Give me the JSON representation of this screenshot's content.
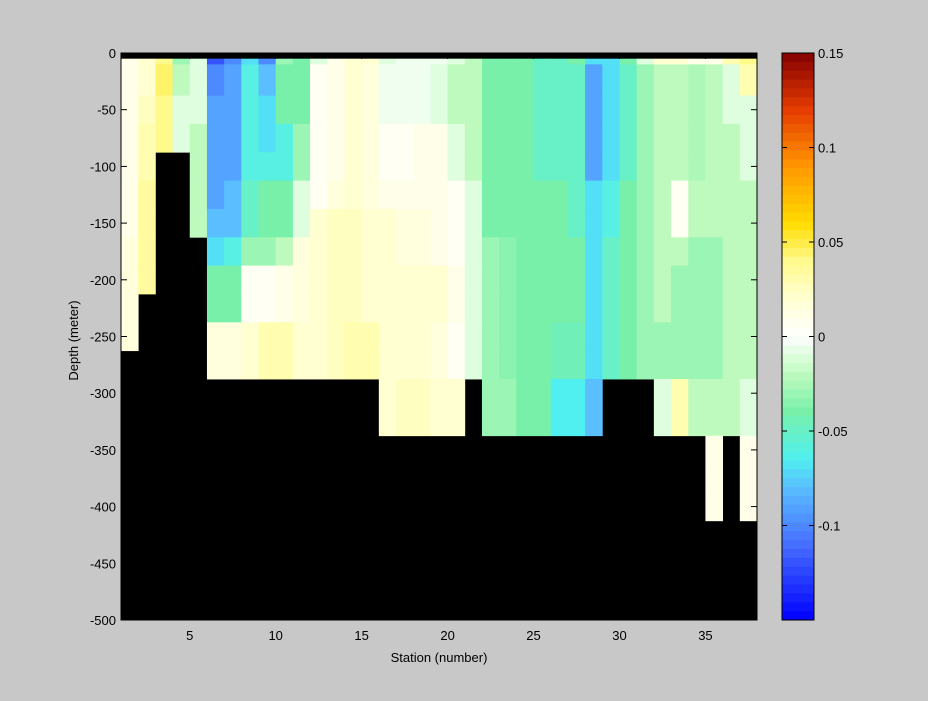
{
  "figure": {
    "background": "#c8c8c8"
  },
  "chart_data": {
    "type": "heatmap",
    "xlabel": "Station (number)",
    "ylabel": "Depth (meter)",
    "xlim": [
      1,
      38
    ],
    "ylim": [
      -500,
      0
    ],
    "xticks": [
      5,
      10,
      15,
      20,
      25,
      30,
      35
    ],
    "yticks": [
      0,
      -50,
      -100,
      -150,
      -200,
      -250,
      -300,
      -350,
      -400,
      -450,
      -500
    ],
    "x_centers": [
      1.5,
      2.5,
      3.5,
      4.5,
      5.5,
      6.5,
      7.5,
      8.5,
      9.5,
      10.5,
      11.5,
      12.5,
      13.5,
      14.5,
      15.5,
      16.5,
      17.5,
      18.5,
      19.5,
      20.5,
      21.5,
      22.5,
      23.5,
      24.5,
      25.5,
      26.5,
      27.5,
      28.5,
      29.5,
      30.5,
      31.5,
      32.5,
      33.5,
      34.5,
      35.5,
      36.5,
      37.5
    ],
    "depth_bins": [
      -5,
      -25,
      -50,
      -75,
      -100,
      -125,
      -150,
      -175,
      -200,
      -225,
      -250,
      -275,
      -300,
      -325,
      -350,
      -375,
      -400
    ],
    "values_by_station": [
      [
        0.01,
        0.01,
        0.01,
        0.01,
        0.01,
        0.01,
        0.01,
        0.015,
        0.015,
        0.015,
        0.015,
        null,
        null,
        null,
        null,
        null,
        null
      ],
      [
        0.02,
        0.02,
        0.025,
        0.03,
        0.03,
        0.035,
        0.035,
        0.035,
        0.035,
        null,
        null,
        null,
        null,
        null,
        null,
        null,
        null
      ],
      [
        0.04,
        0.045,
        0.04,
        0.04,
        null,
        null,
        null,
        null,
        null,
        null,
        null,
        null,
        null,
        null,
        null,
        null,
        null
      ],
      [
        -0.03,
        -0.02,
        -0.01,
        -0.01,
        null,
        null,
        null,
        null,
        null,
        null,
        null,
        null,
        null,
        null,
        null,
        null,
        null
      ],
      [
        -0.01,
        -0.01,
        -0.01,
        -0.02,
        -0.02,
        -0.02,
        -0.02,
        null,
        null,
        null,
        null,
        null,
        null,
        null,
        null,
        null,
        null
      ],
      [
        -0.12,
        -0.1,
        -0.09,
        -0.09,
        -0.09,
        -0.09,
        -0.08,
        -0.07,
        -0.04,
        -0.04,
        0.015,
        0.015,
        null,
        null,
        null,
        null,
        null
      ],
      [
        -0.1,
        -0.09,
        -0.09,
        -0.09,
        -0.09,
        -0.08,
        -0.08,
        -0.06,
        -0.04,
        -0.04,
        0.015,
        0.015,
        null,
        null,
        null,
        null,
        null
      ],
      [
        -0.07,
        -0.06,
        -0.06,
        -0.06,
        -0.06,
        -0.05,
        -0.05,
        -0.03,
        0.005,
        0.005,
        0.02,
        0.02,
        null,
        null,
        null,
        null,
        null
      ],
      [
        -0.1,
        -0.08,
        -0.07,
        -0.07,
        -0.06,
        -0.04,
        -0.04,
        -0.03,
        0.005,
        0.005,
        0.03,
        0.03,
        null,
        null,
        null,
        null,
        null
      ],
      [
        -0.03,
        -0.04,
        -0.04,
        -0.06,
        -0.06,
        -0.04,
        -0.04,
        -0.02,
        0.01,
        0.01,
        0.03,
        0.03,
        null,
        null,
        null,
        null,
        null
      ],
      [
        -0.04,
        -0.04,
        -0.04,
        -0.03,
        -0.03,
        -0.01,
        -0.01,
        0.015,
        0.015,
        0.015,
        0.02,
        0.02,
        null,
        null,
        null,
        null,
        null
      ],
      [
        -0.01,
        0.005,
        0.005,
        0.005,
        0.005,
        0.005,
        0.02,
        0.02,
        0.02,
        0.02,
        0.02,
        0.02,
        null,
        null,
        null,
        null,
        null
      ],
      [
        0.01,
        0.01,
        0.01,
        0.01,
        0.01,
        0.015,
        0.025,
        0.025,
        0.025,
        0.025,
        0.025,
        0.025,
        null,
        null,
        null,
        null,
        null
      ],
      [
        0.02,
        0.02,
        0.02,
        0.02,
        0.02,
        0.02,
        0.025,
        0.025,
        0.025,
        0.025,
        0.03,
        0.03,
        null,
        null,
        null,
        null,
        null
      ],
      [
        0.02,
        0.015,
        0.015,
        0.015,
        0.015,
        0.015,
        0.02,
        0.02,
        0.02,
        0.02,
        0.03,
        0.03,
        null,
        null,
        null,
        null,
        null
      ],
      [
        -0.01,
        -0.005,
        -0.005,
        0.005,
        0.005,
        0.01,
        0.02,
        0.02,
        0.02,
        0.02,
        0.02,
        0.02,
        0.02,
        0.02,
        null,
        null,
        null
      ],
      [
        -0.005,
        -0.005,
        -0.005,
        0.005,
        0.005,
        0.01,
        0.015,
        0.015,
        0.02,
        0.02,
        0.02,
        0.02,
        0.025,
        0.025,
        null,
        null,
        null
      ],
      [
        -0.005,
        -0.005,
        -0.005,
        0.01,
        0.01,
        0.01,
        0.015,
        0.015,
        0.02,
        0.02,
        0.02,
        0.02,
        0.025,
        0.025,
        null,
        null,
        null
      ],
      [
        -0.005,
        -0.01,
        -0.01,
        0.01,
        0.01,
        0.01,
        0.01,
        0.01,
        0.02,
        0.02,
        0.015,
        0.015,
        0.02,
        0.02,
        null,
        null,
        null
      ],
      [
        -0.01,
        -0.02,
        -0.02,
        -0.01,
        -0.01,
        0.005,
        0.005,
        0.005,
        0.01,
        0.01,
        0.005,
        0.005,
        0.02,
        0.02,
        null,
        null,
        null
      ],
      [
        -0.02,
        -0.02,
        -0.02,
        -0.02,
        -0.02,
        -0.01,
        -0.01,
        -0.01,
        -0.01,
        -0.01,
        -0.01,
        -0.01,
        null,
        null,
        null,
        null,
        null
      ],
      [
        -0.04,
        -0.04,
        -0.04,
        -0.04,
        -0.04,
        -0.04,
        -0.04,
        -0.03,
        -0.03,
        -0.03,
        -0.03,
        -0.03,
        -0.03,
        -0.03,
        null,
        null,
        null
      ],
      [
        -0.04,
        -0.04,
        -0.04,
        -0.04,
        -0.04,
        -0.04,
        -0.04,
        -0.035,
        -0.035,
        -0.035,
        -0.035,
        -0.035,
        -0.03,
        -0.03,
        null,
        null,
        null
      ],
      [
        -0.04,
        -0.04,
        -0.04,
        -0.04,
        -0.04,
        -0.04,
        -0.04,
        -0.04,
        -0.04,
        -0.04,
        -0.04,
        -0.04,
        -0.04,
        -0.04,
        null,
        null,
        null
      ],
      [
        -0.05,
        -0.05,
        -0.05,
        -0.05,
        -0.05,
        -0.04,
        -0.04,
        -0.04,
        -0.04,
        -0.04,
        -0.04,
        -0.04,
        -0.04,
        -0.04,
        null,
        null,
        null
      ],
      [
        -0.05,
        -0.05,
        -0.05,
        -0.05,
        -0.05,
        -0.04,
        -0.04,
        -0.04,
        -0.04,
        -0.04,
        -0.045,
        -0.045,
        -0.065,
        -0.065,
        null,
        null,
        null
      ],
      [
        -0.04,
        -0.05,
        -0.05,
        -0.05,
        -0.05,
        -0.05,
        -0.05,
        -0.04,
        -0.04,
        -0.04,
        -0.045,
        -0.045,
        -0.065,
        -0.065,
        null,
        null,
        null
      ],
      [
        -0.07,
        -0.09,
        -0.09,
        -0.09,
        -0.09,
        -0.07,
        -0.07,
        -0.07,
        -0.07,
        -0.07,
        -0.07,
        -0.07,
        -0.08,
        -0.08,
        null,
        null,
        null
      ],
      [
        -0.07,
        -0.07,
        -0.07,
        -0.07,
        -0.07,
        -0.06,
        -0.06,
        -0.05,
        -0.05,
        -0.05,
        -0.05,
        -0.05,
        null,
        null,
        null,
        null,
        null
      ],
      [
        -0.04,
        -0.05,
        -0.05,
        -0.05,
        -0.05,
        -0.04,
        -0.04,
        -0.04,
        -0.04,
        -0.04,
        -0.04,
        -0.04,
        null,
        null,
        null,
        null,
        null
      ],
      [
        -0.01,
        -0.03,
        -0.03,
        -0.03,
        -0.03,
        -0.03,
        -0.03,
        -0.03,
        -0.03,
        -0.03,
        -0.03,
        -0.03,
        null,
        null,
        null,
        null,
        null
      ],
      [
        0.02,
        -0.02,
        -0.02,
        -0.02,
        -0.02,
        -0.02,
        -0.02,
        -0.02,
        -0.02,
        -0.02,
        -0.03,
        -0.03,
        -0.01,
        -0.01,
        null,
        null,
        null
      ],
      [
        0.02,
        -0.02,
        -0.02,
        -0.02,
        -0.02,
        0.005,
        0.005,
        -0.02,
        -0.03,
        -0.03,
        -0.03,
        -0.03,
        0.03,
        0.03,
        null,
        null,
        null
      ],
      [
        0.01,
        -0.025,
        -0.025,
        -0.025,
        -0.025,
        -0.02,
        -0.02,
        -0.03,
        -0.03,
        -0.03,
        -0.03,
        -0.03,
        -0.02,
        -0.02,
        null,
        null,
        null
      ],
      [
        0.01,
        -0.02,
        -0.02,
        -0.02,
        -0.02,
        -0.02,
        -0.02,
        -0.03,
        -0.03,
        -0.03,
        -0.03,
        -0.03,
        -0.02,
        -0.02,
        0.01,
        0.01,
        0.01
      ],
      [
        0.03,
        -0.01,
        -0.01,
        -0.02,
        -0.02,
        -0.02,
        -0.02,
        -0.02,
        -0.02,
        -0.02,
        -0.02,
        -0.02,
        -0.02,
        -0.02,
        null,
        null,
        null
      ],
      [
        0.04,
        0.03,
        -0.01,
        -0.01,
        -0.01,
        -0.02,
        -0.02,
        -0.02,
        -0.02,
        -0.02,
        -0.02,
        -0.02,
        -0.01,
        -0.01,
        0.01,
        0.01,
        0.01
      ]
    ],
    "colorbar": {
      "clim": [
        -0.15,
        0.15
      ],
      "tick_values": [
        0.15,
        0.1,
        0.05,
        0,
        -0.05,
        -0.1
      ],
      "tick_labels": [
        "0.15",
        "0.1",
        "0.05",
        "0",
        "-0.05",
        "-0.1"
      ],
      "colormap": "jet-white-center"
    },
    "mask_color": "#000000",
    "axes_background": "#ffffff"
  }
}
